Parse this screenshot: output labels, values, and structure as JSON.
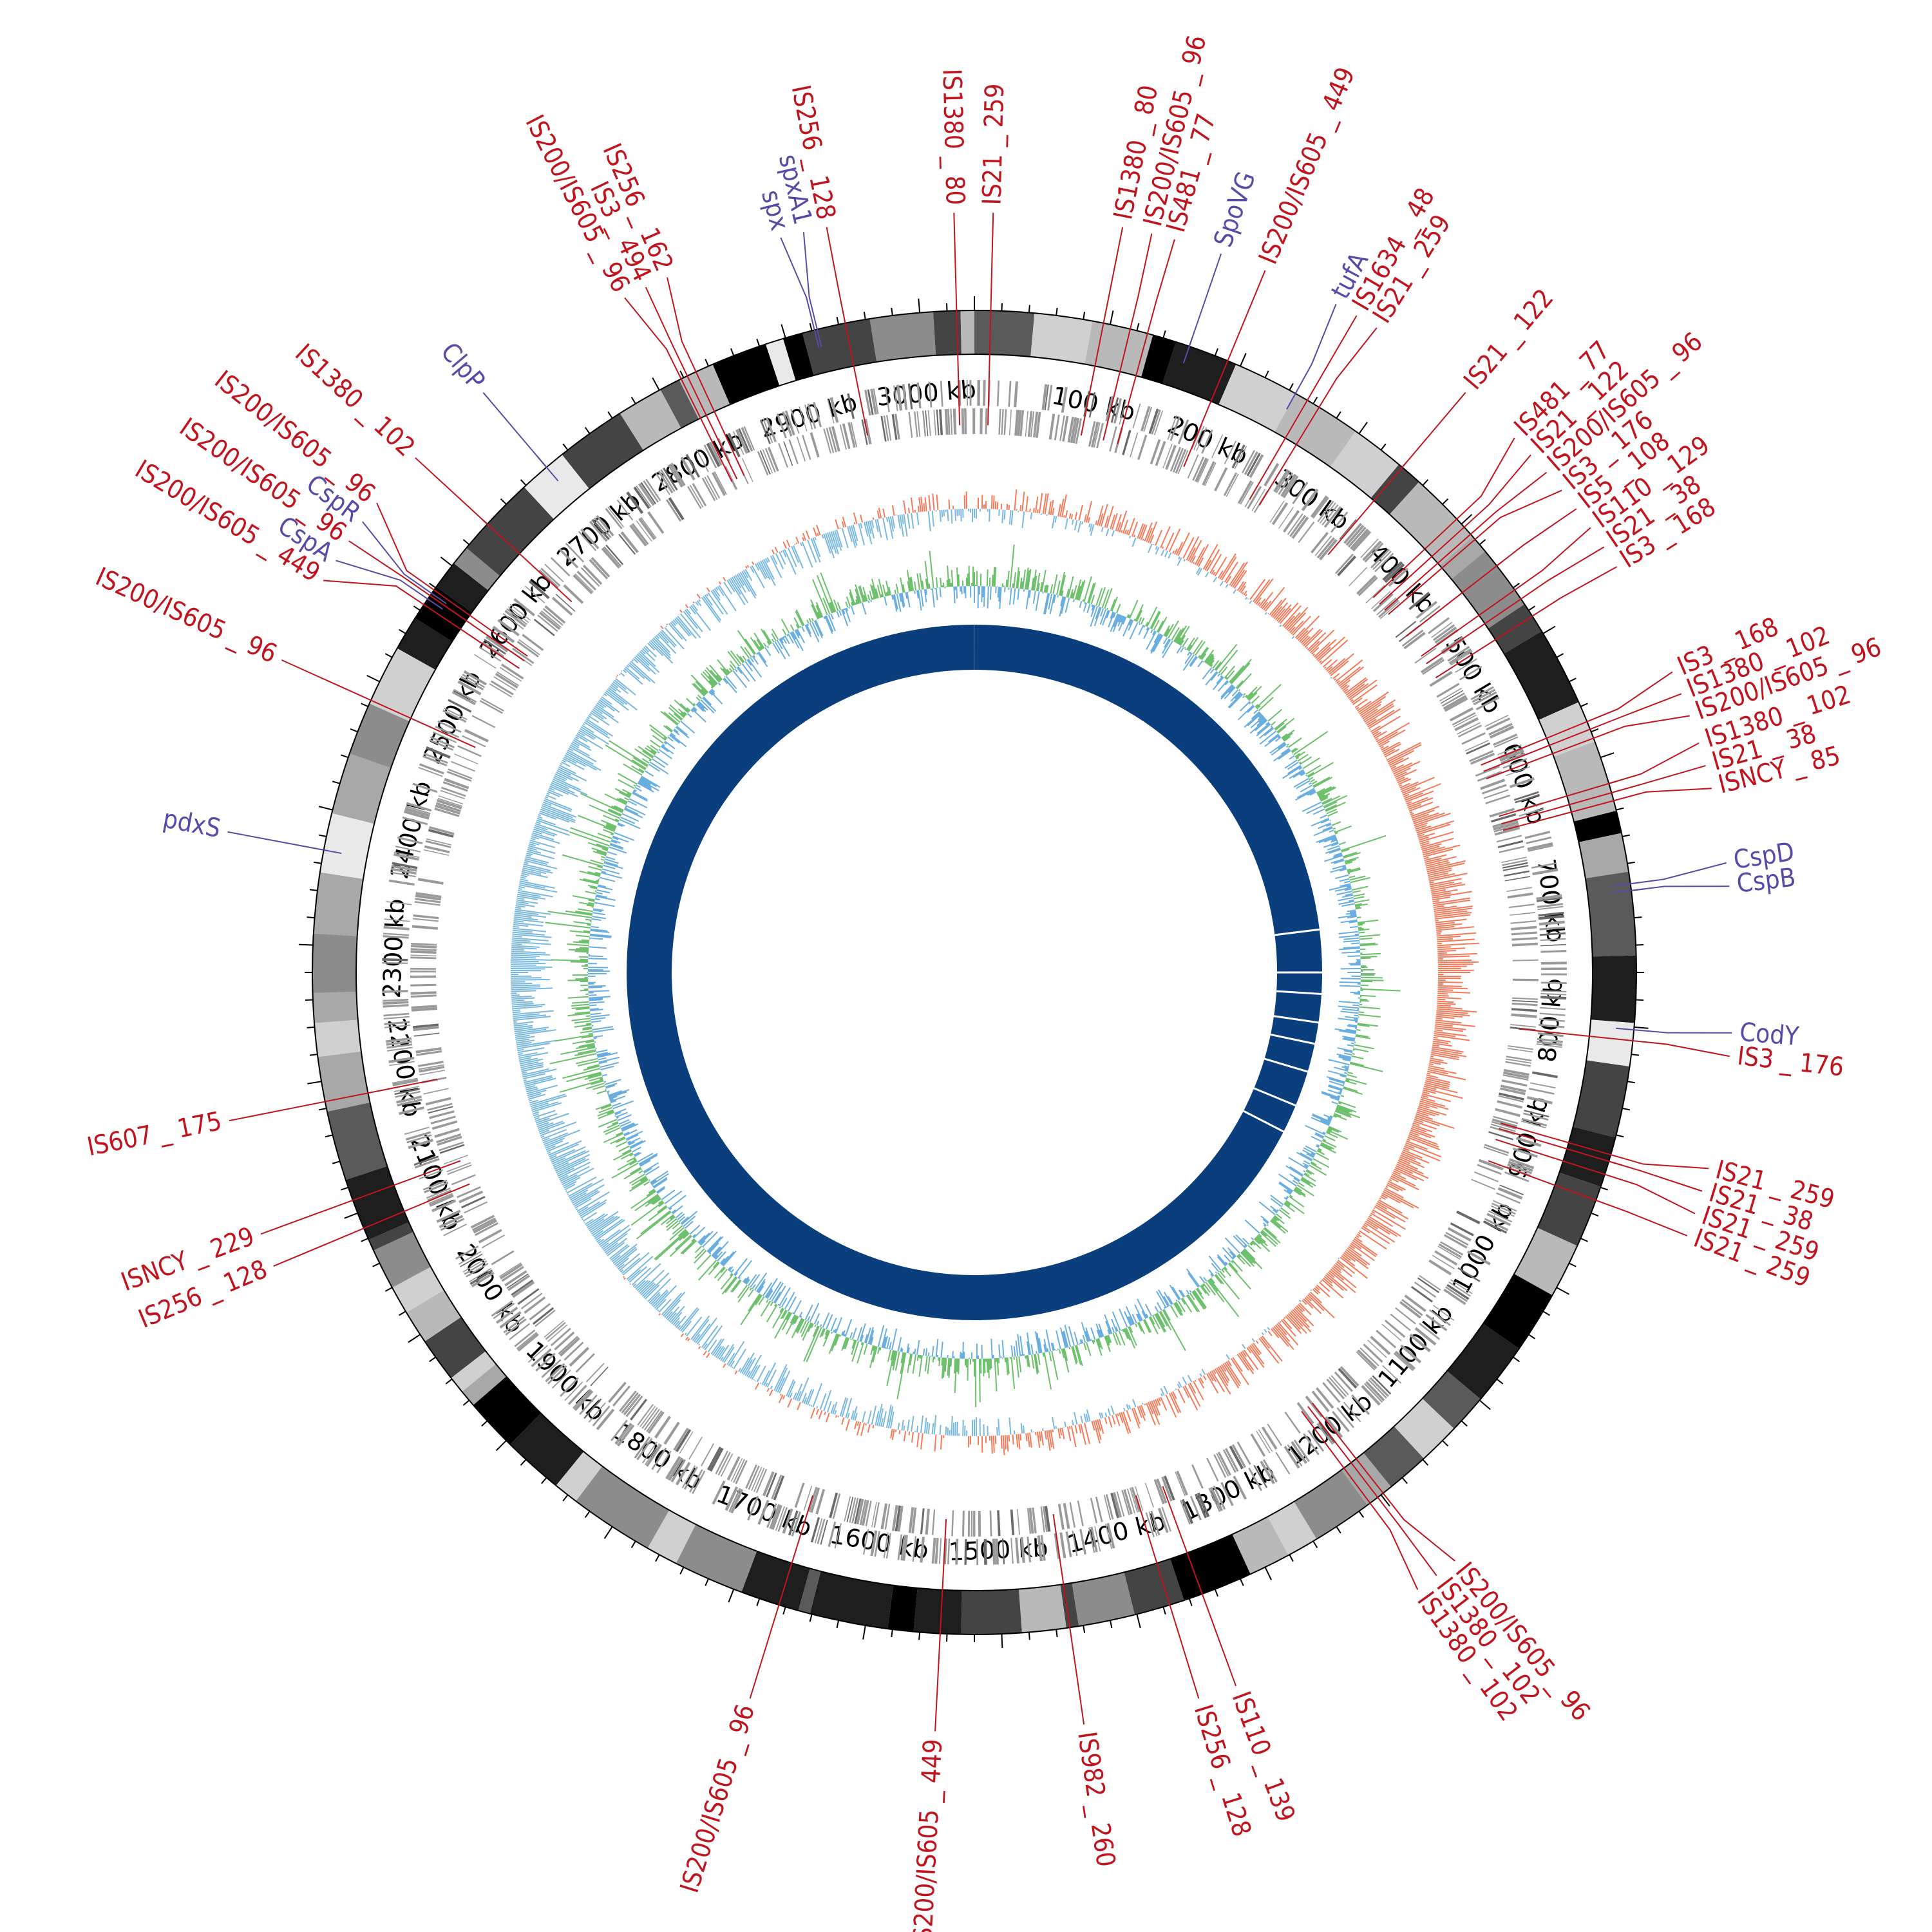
{
  "genome": {
    "length_kb": 3040,
    "tick_unit": "kb",
    "tick_labels": [
      {
        "pos": 100,
        "label": "100 kb"
      },
      {
        "pos": 200,
        "label": "200 kb"
      },
      {
        "pos": 300,
        "label": "300 kb"
      },
      {
        "pos": 400,
        "label": "400 kb"
      },
      {
        "pos": 500,
        "label": "500 kb"
      },
      {
        "pos": 600,
        "label": "600 kb"
      },
      {
        "pos": 700,
        "label": "700 kb"
      },
      {
        "pos": 800,
        "label": "800 kb"
      },
      {
        "pos": 900,
        "label": "900 kb"
      },
      {
        "pos": 1000,
        "label": "1000 kb"
      },
      {
        "pos": 1100,
        "label": "1100 kb"
      },
      {
        "pos": 1200,
        "label": "1200 kb"
      },
      {
        "pos": 1300,
        "label": "1300 kb"
      },
      {
        "pos": 1400,
        "label": "1400 kb"
      },
      {
        "pos": 1500,
        "label": "1500 kb"
      },
      {
        "pos": 1600,
        "label": "1600 kb"
      },
      {
        "pos": 1700,
        "label": "1700 kb"
      },
      {
        "pos": 1800,
        "label": "1800 kb"
      },
      {
        "pos": 1900,
        "label": "1900 kb"
      },
      {
        "pos": 2000,
        "label": "2000 kb"
      },
      {
        "pos": 2100,
        "label": "2100 kb"
      },
      {
        "pos": 2200,
        "label": "2200 kb"
      },
      {
        "pos": 2300,
        "label": "2300 kb"
      },
      {
        "pos": 2400,
        "label": "2400 kb"
      },
      {
        "pos": 2500,
        "label": "2500 kb"
      },
      {
        "pos": 2600,
        "label": "2600 kb"
      },
      {
        "pos": 2700,
        "label": "2700 kb"
      },
      {
        "pos": 2800,
        "label": "2800 kb"
      },
      {
        "pos": 2900,
        "label": "2900 kb"
      },
      {
        "pos": 3000,
        "label": "3000 kb"
      }
    ]
  },
  "colors": {
    "is_element": "#c0141e",
    "gene": "#5a4aa8",
    "gc_skew_positive": "#f47a5a",
    "gc_skew_negative": "#7ab8dd",
    "gc_content_high": "#6cc06c",
    "gc_content_low": "#6aaee0",
    "cds_track": "#999999",
    "inner_ring": "#0b3e7d",
    "inner_ring_gap": "#ffffff"
  },
  "annotations": [
    {
      "label": "IS200/IS605 _ 96",
      "pos": 2818,
      "type": "is"
    },
    {
      "label": "IS3 _ 494",
      "pos": 2823,
      "type": "is"
    },
    {
      "label": "IS256 _ 162",
      "pos": 2830,
      "type": "is"
    },
    {
      "label": "spx",
      "pos": 2922,
      "type": "gene"
    },
    {
      "label": "spxA1",
      "pos": 2924,
      "type": "gene"
    },
    {
      "label": "IS256 _ 128",
      "pos": 2945,
      "type": "is"
    },
    {
      "label": "IS1380 _ 80",
      "pos": 3027,
      "type": "is"
    },
    {
      "label": "IS21 _ 259",
      "pos": 12,
      "type": "is"
    },
    {
      "label": "IS1380 _ 80",
      "pos": 95,
      "type": "is"
    },
    {
      "label": "IS200/IS605 _ 96",
      "pos": 115,
      "type": "is"
    },
    {
      "label": "IS481 _ 77",
      "pos": 128,
      "type": "is"
    },
    {
      "label": "SpoVG",
      "pos": 160,
      "type": "gene"
    },
    {
      "label": "IS200/IS605 _ 449",
      "pos": 190,
      "type": "is"
    },
    {
      "label": "tufA",
      "pos": 245,
      "type": "gene"
    },
    {
      "label": "IS1634 _ 48",
      "pos": 255,
      "type": "is"
    },
    {
      "label": "IS21 _ 259",
      "pos": 265,
      "type": "is"
    },
    {
      "label": "IS21 _ 122",
      "pos": 340,
      "type": "is"
    },
    {
      "label": "IS481 _ 77",
      "pos": 395,
      "type": "is"
    },
    {
      "label": "IS21 _ 122",
      "pos": 403,
      "type": "is"
    },
    {
      "label": "IS200/IS605 _ 96",
      "pos": 410,
      "type": "is"
    },
    {
      "label": "IS3 _ 176",
      "pos": 415,
      "type": "is"
    },
    {
      "label": "IS5 _ 108",
      "pos": 440,
      "type": "is"
    },
    {
      "label": "IS110 _ 129",
      "pos": 462,
      "type": "is"
    },
    {
      "label": "IS21 _ 38",
      "pos": 470,
      "type": "is"
    },
    {
      "label": "IS3 _ 168",
      "pos": 485,
      "type": "is"
    },
    {
      "label": "IS3 _ 168",
      "pos": 572,
      "type": "is"
    },
    {
      "label": "IS1380 _ 102",
      "pos": 578,
      "type": "is"
    },
    {
      "label": "IS200/IS605 _ 96",
      "pos": 585,
      "type": "is"
    },
    {
      "label": "IS1380 _ 102",
      "pos": 620,
      "type": "is"
    },
    {
      "label": "IS21 _ 38",
      "pos": 627,
      "type": "is"
    },
    {
      "label": "ISNCY _ 85",
      "pos": 633,
      "type": "is"
    },
    {
      "label": "CspD",
      "pos": 695,
      "type": "gene"
    },
    {
      "label": "CspB",
      "pos": 700,
      "type": "gene"
    },
    {
      "label": "CodY",
      "pos": 802,
      "type": "gene"
    },
    {
      "label": "IS3 _ 176",
      "pos": 810,
      "type": "is"
    },
    {
      "label": "IS21 _ 259",
      "pos": 895,
      "type": "is"
    },
    {
      "label": "IS21 _ 38",
      "pos": 900,
      "type": "is"
    },
    {
      "label": "IS21 _ 259",
      "pos": 910,
      "type": "is"
    },
    {
      "label": "IS21 _ 259",
      "pos": 930,
      "type": "is"
    },
    {
      "label": "IS200/IS605 _ 96",
      "pos": 1198,
      "type": "is"
    },
    {
      "label": "IS1380 _ 102",
      "pos": 1203,
      "type": "is"
    },
    {
      "label": "IS1380 _ 102",
      "pos": 1210,
      "type": "is"
    },
    {
      "label": "IS110 _ 139",
      "pos": 1350,
      "type": "is"
    },
    {
      "label": "IS256 _ 128",
      "pos": 1375,
      "type": "is"
    },
    {
      "label": "IS982 _ 260",
      "pos": 1450,
      "type": "is"
    },
    {
      "label": "IS200/IS605 _ 449",
      "pos": 1545,
      "type": "is"
    },
    {
      "label": "IS200/IS605 _ 96",
      "pos": 1665,
      "type": "is"
    },
    {
      "label": "IS256 _ 128",
      "pos": 2088,
      "type": "is"
    },
    {
      "label": "ISNCY _ 229",
      "pos": 2110,
      "type": "is"
    },
    {
      "label": "IS607 _ 175",
      "pos": 2185,
      "type": "is"
    },
    {
      "label": "pdxS",
      "pos": 2370,
      "type": "gene"
    },
    {
      "label": "IS200/IS605 _ 96",
      "pos": 2485,
      "type": "is"
    },
    {
      "label": "IS200/IS605 _ 449",
      "pos": 2565,
      "type": "is"
    },
    {
      "label": "CspA",
      "pos": 2570,
      "type": "gene"
    },
    {
      "label": "IS200/IS605 _ 96",
      "pos": 2573,
      "type": "is"
    },
    {
      "label": "CspR",
      "pos": 2575,
      "type": "gene"
    },
    {
      "label": "IS200/IS605 _ 96",
      "pos": 2578,
      "type": "is"
    },
    {
      "label": "IS1380 _ 102",
      "pos": 2640,
      "type": "is"
    },
    {
      "label": "ClpP",
      "pos": 2700,
      "type": "gene"
    }
  ]
}
